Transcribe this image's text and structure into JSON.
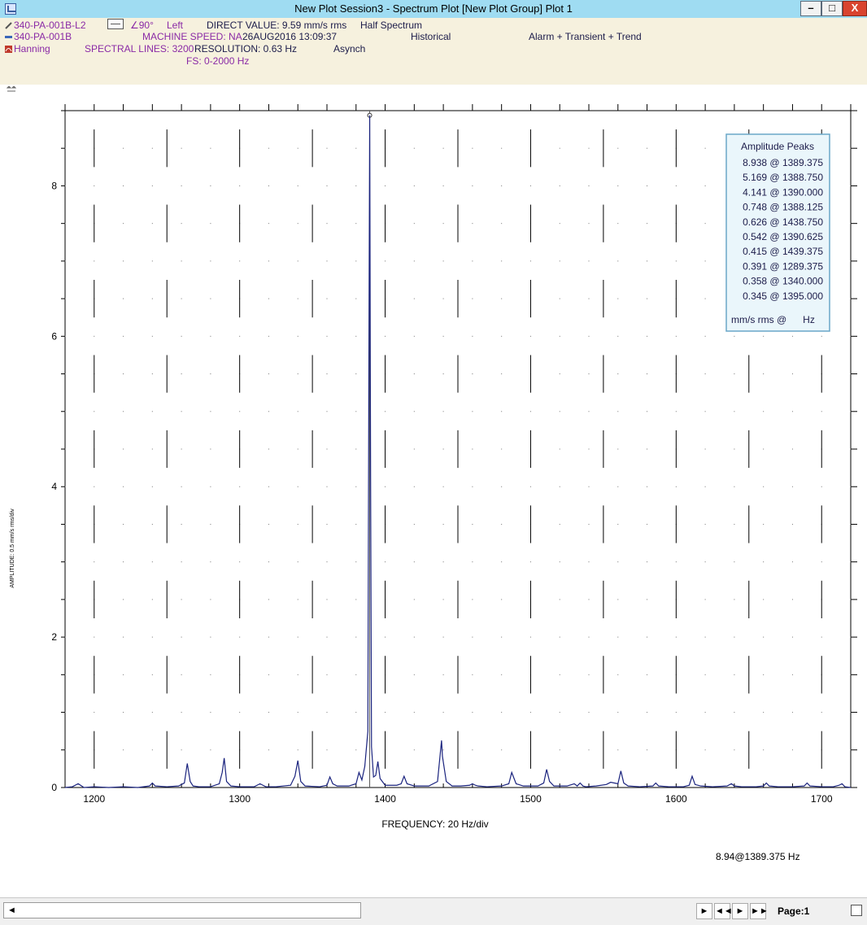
{
  "window": {
    "title": "New Plot Session3 - Spectrum Plot [New Plot Group] Plot 1",
    "min_label": "–",
    "max_label": "□",
    "close_label": "X"
  },
  "header": {
    "point_id": "340-PA-001B-L2",
    "angle": "∠90°",
    "side": "Left",
    "direct_value": "DIRECT VALUE: 9.59 mm/s rms",
    "spectrum_mode": "Half Spectrum",
    "machine_id": "340-PA-001B",
    "machine_speed": "MACHINE SPEED: NA",
    "timestamp": "26AUG2016 13:09:37",
    "data_source": "Historical",
    "alarm_mode": "Alarm + Transient + Trend",
    "window_type": "Hanning",
    "spectral_lines": "SPECTRAL LINES: 3200",
    "resolution": "RESOLUTION: 0.63 Hz",
    "sampling": "Asynch",
    "full_scale": "FS: 0-2000 Hz"
  },
  "colors": {
    "trace": "#1a237e",
    "header_bg": "#f6f1de",
    "title_bg": "#9fdcf2",
    "purple_text": "#8a2aa6",
    "peaks_border": "#6aa7c8"
  },
  "chart_data": {
    "type": "line",
    "xlabel": "FREQUENCY: 20 Hz/div",
    "ylabel": "AMPLITUDE: 0.5 mm/s rms/div",
    "xlim": [
      1180,
      1720
    ],
    "ylim": [
      0,
      9
    ],
    "x_ticks": [
      1200,
      1300,
      1400,
      1500,
      1600,
      1700
    ],
    "y_ticks": [
      0,
      2,
      4,
      6,
      8
    ],
    "grid": true,
    "cursor": {
      "x": 1389.375,
      "y": 8.938
    },
    "cursor_readout": "8.94@1389.375 Hz",
    "peaks_title": "Amplitude Peaks",
    "peaks_units": "mm/s rms @      Hz",
    "peaks": [
      {
        "label": "8.938 @ 1389.375",
        "amp": 8.938,
        "freq": 1389.375
      },
      {
        "label": "5.169 @ 1388.750",
        "amp": 5.169,
        "freq": 1388.75
      },
      {
        "label": "4.141 @ 1390.000",
        "amp": 4.141,
        "freq": 1390.0
      },
      {
        "label": "0.748 @ 1388.125",
        "amp": 0.748,
        "freq": 1388.125
      },
      {
        "label": "0.626 @ 1438.750",
        "amp": 0.626,
        "freq": 1438.75
      },
      {
        "label": "0.542 @ 1390.625",
        "amp": 0.542,
        "freq": 1390.625
      },
      {
        "label": "0.415 @ 1439.375",
        "amp": 0.415,
        "freq": 1439.375
      },
      {
        "label": "0.391 @ 1289.375",
        "amp": 0.391,
        "freq": 1289.375
      },
      {
        "label": "0.358 @ 1340.000",
        "amp": 0.358,
        "freq": 1340.0
      },
      {
        "label": "0.345 @ 1395.000",
        "amp": 0.345,
        "freq": 1395.0
      }
    ],
    "series": [
      {
        "x": [
          1180,
          1185,
          1189,
          1193,
          1200,
          1210,
          1220,
          1230,
          1238,
          1240,
          1242,
          1250,
          1258,
          1262,
          1264,
          1266,
          1268,
          1272,
          1280,
          1286,
          1288,
          1289.375,
          1291,
          1294,
          1300,
          1310,
          1314,
          1316,
          1318,
          1325,
          1335,
          1338,
          1340,
          1342,
          1345,
          1355,
          1360,
          1362,
          1364,
          1367,
          1375,
          1380,
          1382,
          1384,
          1386,
          1388.125,
          1388.75,
          1389.375,
          1390.0,
          1390.625,
          1392,
          1393.5,
          1395,
          1396.5,
          1400,
          1408,
          1411,
          1413,
          1415,
          1420,
          1430,
          1436,
          1438.75,
          1439.375,
          1442,
          1446,
          1452,
          1458,
          1460,
          1462,
          1464,
          1470,
          1480,
          1485,
          1487,
          1490,
          1495,
          1505,
          1509,
          1511,
          1513,
          1516,
          1525,
          1530,
          1532,
          1534,
          1536,
          1538,
          1545,
          1552,
          1555,
          1560,
          1562,
          1564,
          1567,
          1575,
          1584,
          1586,
          1588,
          1595,
          1605,
          1609,
          1611,
          1613,
          1617,
          1625,
          1635,
          1638,
          1640,
          1645,
          1655,
          1660,
          1662,
          1664,
          1670,
          1680,
          1688,
          1690,
          1692,
          1700,
          1708,
          1712,
          1714,
          1716,
          1720
        ],
        "y": [
          0.0,
          0.01,
          0.05,
          0.0,
          0.01,
          0.0,
          0.01,
          0.0,
          0.02,
          0.06,
          0.02,
          0.01,
          0.02,
          0.06,
          0.32,
          0.08,
          0.02,
          0.01,
          0.01,
          0.05,
          0.2,
          0.391,
          0.08,
          0.02,
          0.01,
          0.01,
          0.05,
          0.03,
          0.01,
          0.01,
          0.03,
          0.15,
          0.358,
          0.08,
          0.02,
          0.01,
          0.03,
          0.14,
          0.05,
          0.02,
          0.02,
          0.05,
          0.2,
          0.1,
          0.28,
          0.748,
          5.169,
          8.938,
          4.141,
          0.542,
          0.14,
          0.16,
          0.345,
          0.12,
          0.03,
          0.03,
          0.05,
          0.15,
          0.05,
          0.02,
          0.02,
          0.08,
          0.626,
          0.415,
          0.08,
          0.02,
          0.02,
          0.03,
          0.05,
          0.03,
          0.02,
          0.01,
          0.02,
          0.05,
          0.2,
          0.05,
          0.02,
          0.02,
          0.06,
          0.24,
          0.08,
          0.02,
          0.02,
          0.05,
          0.02,
          0.06,
          0.02,
          0.01,
          0.02,
          0.04,
          0.07,
          0.05,
          0.22,
          0.06,
          0.02,
          0.01,
          0.02,
          0.06,
          0.02,
          0.01,
          0.01,
          0.03,
          0.15,
          0.04,
          0.02,
          0.01,
          0.02,
          0.05,
          0.02,
          0.01,
          0.01,
          0.02,
          0.06,
          0.02,
          0.01,
          0.01,
          0.02,
          0.06,
          0.02,
          0.01,
          0.01,
          0.03,
          0.05,
          0.01,
          0.0
        ]
      }
    ]
  },
  "statusbar": {
    "scroll_left": "◄",
    "nav_next": "►",
    "nav_first": "◄◄",
    "nav_prev": "►",
    "nav_last": "►►",
    "page": "Page:1"
  }
}
